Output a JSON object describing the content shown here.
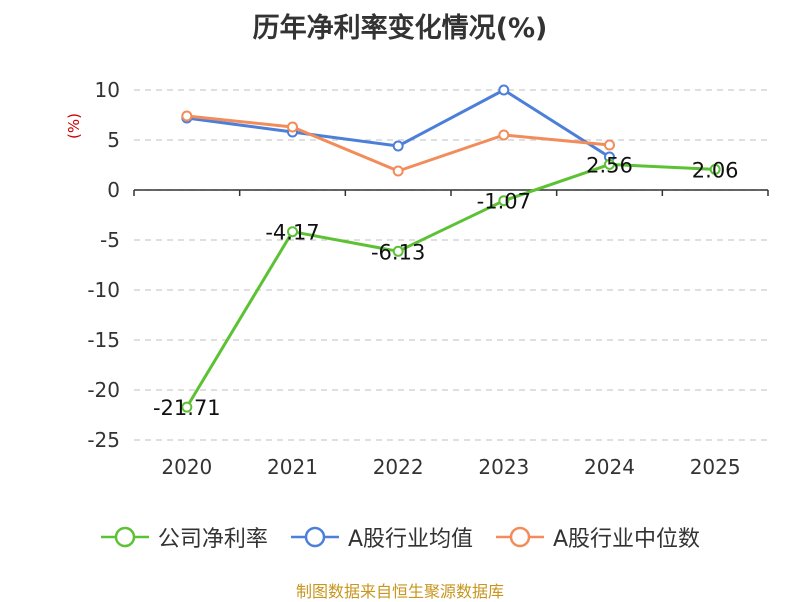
{
  "chart_data": {
    "type": "line",
    "title": "历年净利率变化情况(%)",
    "ylabel": "(%)",
    "xlabel": "",
    "categories": [
      "2020",
      "2021",
      "2022",
      "2023",
      "2024",
      "2025"
    ],
    "ylim": [
      -25,
      10
    ],
    "yticks": [
      10,
      5,
      0,
      -5,
      -10,
      -15,
      -20,
      -25
    ],
    "grid": true,
    "legend_position": "bottom",
    "series": [
      {
        "name": "公司净利率",
        "color": "#5cc234",
        "values": [
          -21.71,
          -4.17,
          -6.13,
          -1.07,
          2.56,
          2.06
        ],
        "labels": [
          "-21.71",
          "-4.17",
          "-6.13",
          "-1.07",
          "2.56",
          "2.06"
        ]
      },
      {
        "name": "A股行业均值",
        "color": "#4b7fd9",
        "values": [
          7.2,
          5.8,
          4.4,
          10.0,
          3.3,
          null
        ]
      },
      {
        "name": "A股行业中位数",
        "color": "#f28c5a",
        "values": [
          7.4,
          6.3,
          1.9,
          5.5,
          4.5,
          null
        ]
      }
    ]
  },
  "source": "制图数据来自恒生聚源数据库"
}
